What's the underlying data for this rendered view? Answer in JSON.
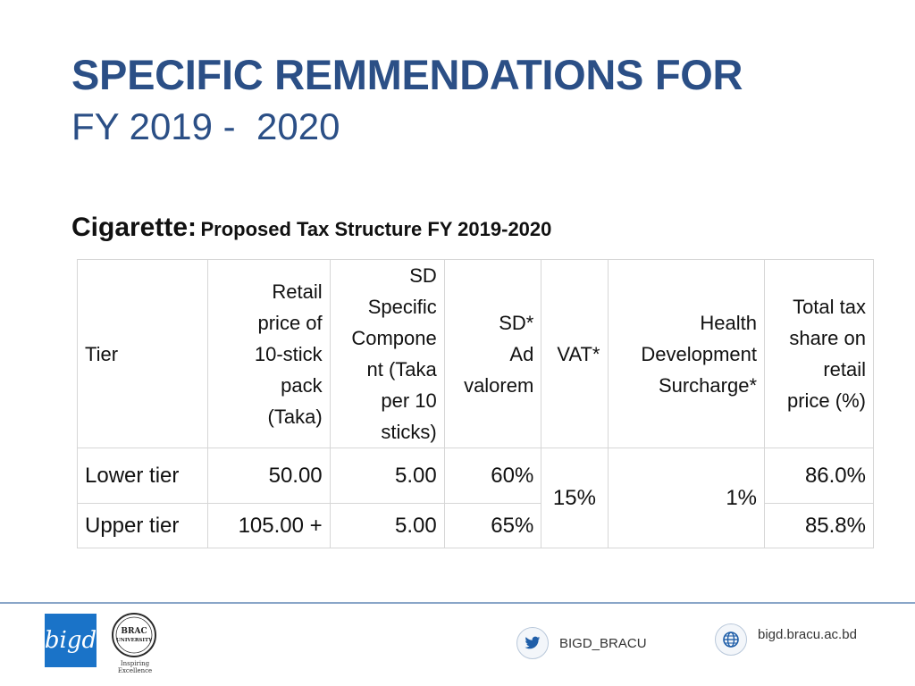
{
  "title": "SPECIFIC REMMENDATIONS FOR",
  "subtitle": "FY 2019 -  2020",
  "caption": {
    "product": "Cigarette:",
    "description": "Proposed Tax Structure FY 2019-2020"
  },
  "table": {
    "headers": {
      "tier": "Tier",
      "retail_price": [
        "Retail",
        "price of",
        "10-stick",
        "pack",
        "(Taka)"
      ],
      "sd_specific": [
        "SD",
        "Specific",
        "Compone",
        "nt (Taka",
        "per 10",
        "sticks)"
      ],
      "sd_ad_valorem": [
        "SD*",
        "Ad",
        "valorem"
      ],
      "vat": "VAT*",
      "health_surcharge": [
        "Health",
        "Development",
        "Surcharge*"
      ],
      "total_tax_share": [
        "Total tax",
        "share on",
        "retail",
        "price (%)"
      ]
    },
    "rows": [
      {
        "tier": "Lower tier",
        "retail_price": "50.00",
        "sd_specific": "5.00",
        "sd_ad_valorem": "60%",
        "total_tax_share": "86.0%"
      },
      {
        "tier": "Upper tier",
        "retail_price": "105.00 +",
        "sd_specific": "5.00",
        "sd_ad_valorem": "65%",
        "total_tax_share": "85.8%"
      }
    ],
    "merged": {
      "vat": "15%",
      "health_surcharge": "1%"
    }
  },
  "footer": {
    "bigd_logo_text": "bigd",
    "brac_logo_lines": [
      "BRAC",
      "UNIVERSITY"
    ],
    "brac_tagline": "Inspiring Excellence",
    "twitter_handle": "BIGD_BRACU",
    "website": "bigd.bracu.ac.bd",
    "twitter_icon": "twitter-bird-icon",
    "web_icon": "globe-icon"
  },
  "colors": {
    "title": "#2b4f86",
    "logo_blue": "#1a73c8",
    "rule": "#8aa6c8"
  }
}
